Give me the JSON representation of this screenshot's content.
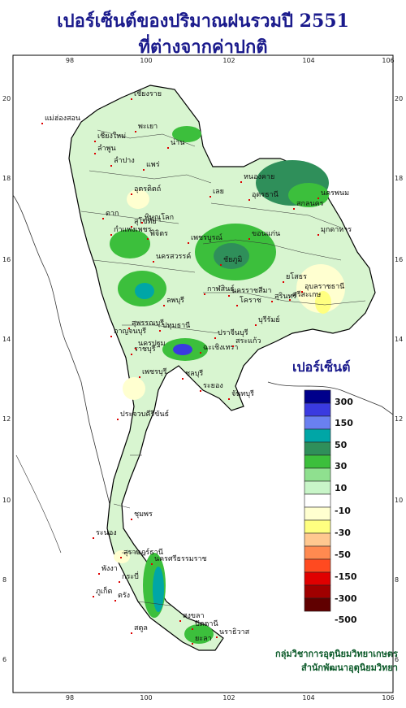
{
  "title": {
    "line1": "เปอร์เซ็นต์ของปริมาณฝนรวมปี 2551",
    "line2": "ที่ต่างจากค่าปกติ"
  },
  "axes": {
    "lon_ticks": [
      "98",
      "100",
      "102",
      "104",
      "106"
    ],
    "lat_ticks": [
      "20",
      "18",
      "16",
      "14",
      "12",
      "10",
      "8",
      "6"
    ]
  },
  "legend": {
    "title": "เปอร์เซ็นต์",
    "labels": [
      "300",
      "150",
      "50",
      "30",
      "10",
      "-10",
      "-30",
      "-50",
      "-150",
      "-300",
      "-500"
    ],
    "colors": [
      "#00008b",
      "#3a3ae0",
      "#6a80f0",
      "#00a6a6",
      "#2f8f5a",
      "#3cbf3c",
      "#8fe08f",
      "#c8f5c8",
      "#ffffff",
      "#ffffd0",
      "#ffff80",
      "#ffc890",
      "#ff8a50",
      "#ff4a20",
      "#e00000",
      "#a00000",
      "#600000"
    ]
  },
  "provinces": [
    "เชียงราย",
    "แม่ฮ่องสอน",
    "เชียงใหม่",
    "ลำพูน",
    "ลำปาง",
    "พะเยา",
    "น่าน",
    "แพร่",
    "อุตรดิตถ์",
    "ตาก",
    "สุโขทัย",
    "พิษณุโลก",
    "หนองคาย",
    "อุดรธานี",
    "สกลนคร",
    "นครพนม",
    "มุกดาหาร",
    "เลย",
    "ขอนแก่น",
    "ชัยภูมิ",
    "กาฬสินธุ์",
    "ยโสธร",
    "อุบลราชธานี",
    "ศรีสะเกษ",
    "สุรินทร์",
    "บุรีรัมย์",
    "นครราชสีมา",
    "โคราช",
    "นครสวรรค์",
    "กำแพงเพชร",
    "พิจิตร",
    "เพชรบูรณ์",
    "ลพบุรี",
    "สุพรรณบุรี",
    "กาญจนบุรี",
    "ราชบุรี",
    "ปทุมธานี",
    "นครปฐม",
    "ฉะเชิงเทรา",
    "ปราจีนบุรี",
    "สระแก้ว",
    "ชลบุรี",
    "ระยอง",
    "จันทบุรี",
    "ประจวบคีรีขันธ์",
    "เพชรบุรี",
    "ชุมพร",
    "ระนอง",
    "สุราษฎร์ธานี",
    "พังงา",
    "ภูเก็ต",
    "กระบี่",
    "นครศรีธรรมราช",
    "ตรัง",
    "สตูล",
    "สงขลา",
    "ปัตตานี",
    "ยะลา",
    "นราธิวาส"
  ],
  "credit": {
    "line1": "กลุ่มวิชาการอุตุนิยมวิทยาเกษตร",
    "line2": "สำนักพัฒนาอุตุนิยมวิทยา"
  }
}
